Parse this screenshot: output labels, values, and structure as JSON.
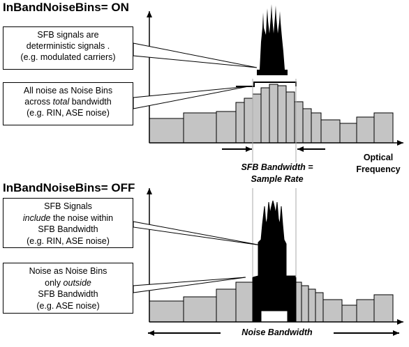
{
  "top": {
    "title": "InBandNoiseBins= ON",
    "box1": {
      "l1": "SFB signals are",
      "l2": "deterministic signals .",
      "l3": "(e.g. modulated carriers)"
    },
    "box2": {
      "l1": "All noise as Noise Bins",
      "l2a": "across ",
      "l2b": "total",
      "l2c": " bandwidth",
      "l3": "(e.g. RIN, ASE noise)"
    },
    "axis_label_1": "Optical",
    "axis_label_2": "Frequency",
    "sfb_label_1": "SFB Bandwidth =",
    "sfb_label_2": "Sample Rate"
  },
  "bottom": {
    "title": "InBandNoiseBins= OFF",
    "box1": {
      "l1": "SFB Signals",
      "l2a": "include",
      "l2b": " the noise within",
      "l3": "SFB Bandwidth",
      "l4": "(e.g. RIN, ASE noise)"
    },
    "box2": {
      "l1": "Noise as Noise Bins",
      "l2a": "only ",
      "l2b": "outside",
      "l3": "SFB Bandwidth",
      "l4": "(e.g. ASE noise)"
    },
    "noise_label": "Noise Bandwidth"
  },
  "colors": {
    "bin_fill": "#c4c4c4",
    "signal_fill": "#000000",
    "stroke": "#000000"
  }
}
